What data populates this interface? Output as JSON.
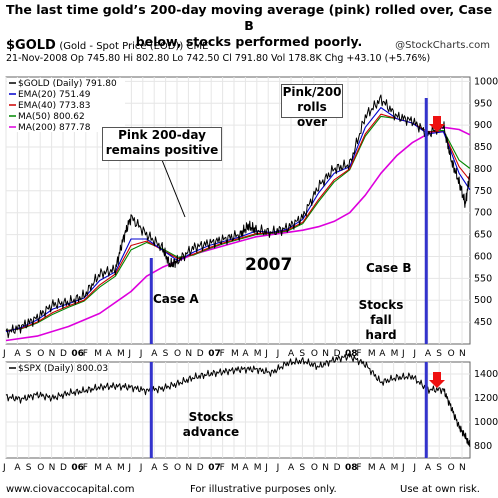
{
  "title_lines": [
    "The last time gold’s 200-day moving average (pink) rolled over, Case B",
    "below, stocks performed poorly."
  ],
  "header": {
    "symbol": "$GOLD",
    "symbol_desc": "(Gold - Spot Price (EOD))  CME",
    "brand": "@StockCharts.com",
    "ohlc_line": "21-Nov-2008   Op 745.80   Hi 802.80   Lo 742.50   Cl 791.80   Vol 178.8K   Chg +43.10 (+5.76%)"
  },
  "legend": [
    {
      "label": "$GOLD (Daily) 791.80",
      "color": "#000000"
    },
    {
      "label": "EMA(20) 751.49",
      "color": "#0000cc"
    },
    {
      "label": "EMA(40) 773.83",
      "color": "#cc0000"
    },
    {
      "label": "MA(50) 800.62",
      "color": "#008800"
    },
    {
      "label": "MA(200) 877.78",
      "color": "#dd00dd"
    }
  ],
  "annotations": {
    "pink_positive": "Pink 200-day\nremains positive",
    "pink_rolls": "Pink/200\nrolls over",
    "year_label": "2007",
    "case_a": "Case A",
    "case_b": "Case B",
    "stocks_fall": "Stocks\nfall hard",
    "stocks_advance": "Stocks\nadvance"
  },
  "spx_legend": "$SPX (Daily) 800.03",
  "footer": {
    "left": "www.ciovaccocapital.com",
    "center": "For illustrative purposes only.",
    "right": "Use at own risk."
  },
  "colors": {
    "pink": "#dd00dd",
    "case_line": "#3333cc",
    "arrow": "#ee1111",
    "grid": "#e6e6e6"
  },
  "chart_data": [
    {
      "type": "line",
      "name": "gold_price_panel",
      "ylim": [
        400,
        1010
      ],
      "y_ticks": [
        450,
        500,
        550,
        600,
        650,
        700,
        750,
        800,
        850,
        900,
        950,
        1000
      ],
      "x_tick_labels": [
        "J",
        "A",
        "S",
        "O",
        "N",
        "D",
        "06",
        "F",
        "M",
        "A",
        "M",
        "J",
        "J",
        "A",
        "S",
        "O",
        "N",
        "D",
        "07",
        "F",
        "M",
        "A",
        "M",
        "J",
        "J",
        "A",
        "S",
        "O",
        "N",
        "D",
        "08",
        "F",
        "M",
        "A",
        "M",
        "J",
        "J",
        "A",
        "S",
        "O",
        "N"
      ],
      "x_range_months": [
        0,
        29.7
      ],
      "series": [
        {
          "name": "$GOLD",
          "x": [
            0,
            1,
            2,
            3,
            4,
            5,
            6,
            7,
            7.5,
            8,
            9,
            10,
            10.5,
            11,
            12,
            13,
            14,
            15,
            15.5,
            16,
            17,
            18,
            19,
            20,
            21,
            22,
            23,
            24,
            25,
            26,
            27,
            28,
            28.5,
            29,
            29.4,
            29.7
          ],
          "y": [
            425,
            440,
            460,
            490,
            495,
            510,
            560,
            570,
            640,
            690,
            650,
            620,
            580,
            590,
            620,
            630,
            640,
            650,
            670,
            660,
            655,
            665,
            690,
            760,
            800,
            810,
            920,
            960,
            920,
            910,
            880,
            900,
            820,
            770,
            720,
            790
          ]
        },
        {
          "name": "EMA(20)",
          "x": [
            0,
            1,
            2,
            3,
            4,
            5,
            6,
            7,
            8,
            9,
            10,
            11,
            12,
            13,
            14,
            15,
            16,
            17,
            18,
            19,
            20,
            21,
            22,
            23,
            24,
            25,
            26,
            27,
            28,
            29,
            29.7
          ],
          "y": [
            428,
            438,
            455,
            480,
            492,
            505,
            545,
            565,
            640,
            640,
            615,
            590,
            610,
            625,
            635,
            645,
            658,
            655,
            662,
            685,
            745,
            790,
            805,
            895,
            940,
            915,
            905,
            880,
            885,
            790,
            752
          ]
        },
        {
          "name": "EMA(40)",
          "x": [
            0,
            1,
            2,
            3,
            4,
            5,
            6,
            7,
            8,
            9,
            10,
            11,
            12,
            13,
            14,
            15,
            16,
            17,
            18,
            19,
            20,
            21,
            22,
            23,
            24,
            25,
            26,
            27,
            28,
            29,
            29.7
          ],
          "y": [
            430,
            436,
            450,
            472,
            487,
            500,
            535,
            560,
            625,
            635,
            615,
            595,
            605,
            620,
            632,
            642,
            652,
            654,
            660,
            678,
            730,
            775,
            800,
            880,
            925,
            915,
            905,
            885,
            885,
            805,
            774
          ]
        },
        {
          "name": "MA(50)",
          "x": [
            0,
            1,
            2,
            3,
            4,
            5,
            6,
            7,
            8,
            9,
            10,
            11,
            12,
            13,
            14,
            15,
            16,
            17,
            18,
            19,
            20,
            21,
            22,
            23,
            24,
            25,
            26,
            27,
            28,
            29,
            29.7
          ],
          "y": [
            431,
            435,
            448,
            468,
            484,
            498,
            530,
            555,
            615,
            632,
            618,
            598,
            603,
            618,
            630,
            640,
            650,
            653,
            658,
            675,
            725,
            770,
            798,
            875,
            920,
            915,
            905,
            885,
            888,
            820,
            801
          ]
        },
        {
          "name": "MA(200)",
          "x": [
            0,
            2,
            4,
            6,
            8,
            9,
            10,
            11,
            12,
            13,
            14,
            15,
            16,
            17,
            18,
            19,
            20,
            21,
            22,
            23,
            24,
            25,
            26,
            27,
            28,
            29,
            29.7
          ],
          "y": [
            408,
            418,
            440,
            470,
            520,
            555,
            575,
            590,
            605,
            615,
            625,
            635,
            645,
            650,
            655,
            660,
            668,
            680,
            700,
            740,
            790,
            830,
            860,
            880,
            895,
            890,
            878
          ]
        }
      ]
    },
    {
      "type": "line",
      "name": "spx_panel",
      "ylim": [
        700,
        1500
      ],
      "y_ticks": [
        800,
        1000,
        1200,
        1400
      ],
      "series": [
        {
          "name": "$SPX",
          "x": [
            0,
            1,
            2,
            3,
            4,
            5,
            6,
            7,
            8,
            9,
            10,
            11,
            12,
            13,
            14,
            15,
            16,
            17,
            18,
            19,
            20,
            21,
            22,
            23,
            24,
            25,
            26,
            27,
            28,
            28.5,
            29,
            29.4,
            29.7
          ],
          "y": [
            1210,
            1190,
            1230,
            1200,
            1240,
            1260,
            1290,
            1300,
            1290,
            1260,
            1280,
            1320,
            1370,
            1400,
            1420,
            1440,
            1440,
            1410,
            1490,
            1510,
            1460,
            1520,
            1550,
            1480,
            1330,
            1370,
            1380,
            1270,
            1270,
            1120,
            960,
            880,
            800
          ]
        }
      ]
    }
  ]
}
